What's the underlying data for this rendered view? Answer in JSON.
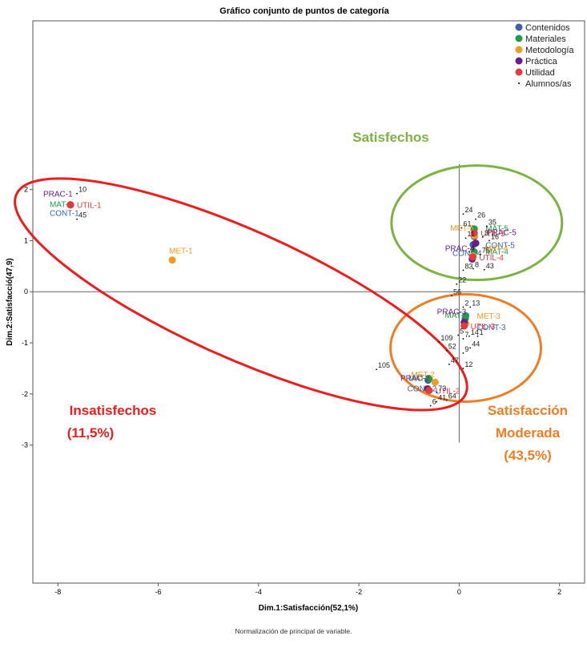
{
  "chart_data": {
    "type": "scatter",
    "title": "Gráfico conjunto de puntos de categoría",
    "xlabel": "Dim.1:Satisfacción(52,1%)",
    "ylabel": "Dim.2:Satisfacció(47,9)",
    "xlim": [
      -8.5,
      2.5
    ],
    "ylim": [
      -5.7,
      5.3
    ],
    "xticks": [
      -8,
      -6,
      -4,
      -2,
      0,
      2
    ],
    "yticks": [
      -3,
      -2,
      -1,
      0,
      1,
      2
    ],
    "axes_through_origin": true,
    "grid": false,
    "legend_position": "top-right",
    "series": [
      {
        "name": "Contenidos",
        "color": "#3b5fb5",
        "points": [
          {
            "label": "CONT-1",
            "x": -7.75,
            "y": 1.7
          },
          {
            "label": "CONT-2",
            "x": -0.62,
            "y": -1.73
          },
          {
            "label": "CONT-3",
            "x": 0.12,
            "y": -0.53
          },
          {
            "label": "CONT-4",
            "x": 0.28,
            "y": 0.92
          },
          {
            "label": "CONT-5",
            "x": 0.3,
            "y": 1.08
          }
        ]
      },
      {
        "name": "Materiales",
        "color": "#1e9e4a",
        "points": [
          {
            "label": "MAT-1",
            "x": -7.75,
            "y": 1.7
          },
          {
            "label": "MAT-2",
            "x": -0.6,
            "y": -1.7
          },
          {
            "label": "MAT-3",
            "x": 0.13,
            "y": -0.47
          },
          {
            "label": "MAT-4",
            "x": 0.3,
            "y": 0.78
          },
          {
            "label": "MAT-5",
            "x": 0.3,
            "y": 1.23
          }
        ]
      },
      {
        "name": "Metodología",
        "color": "#f39a21",
        "points": [
          {
            "label": "MET-1",
            "x": -5.72,
            "y": 0.62
          },
          {
            "label": "MET-2",
            "x": -0.48,
            "y": -1.77
          },
          {
            "label": "MET-3",
            "x": 0.13,
            "y": -0.62
          },
          {
            "label": "MET-4",
            "x": 0.28,
            "y": 0.7
          },
          {
            "label": "MET-5",
            "x": 0.3,
            "y": 1.1
          }
        ]
      },
      {
        "name": "Práctica",
        "color": "#6a1f87",
        "points": [
          {
            "label": "PRAC-1",
            "x": -7.75,
            "y": 1.7
          },
          {
            "label": "PRAC-2",
            "x": -0.63,
            "y": -1.9
          },
          {
            "label": "PRAC-3",
            "x": 0.1,
            "y": -0.6
          },
          {
            "label": "PRAC-4",
            "x": 0.26,
            "y": 0.64
          },
          {
            "label": "PRAC-5",
            "x": 0.33,
            "y": 0.95
          }
        ]
      },
      {
        "name": "Utilidad",
        "color": "#e63939",
        "points": [
          {
            "label": "UTIL-1",
            "x": -7.75,
            "y": 1.7
          },
          {
            "label": "UTIL-2",
            "x": -0.6,
            "y": -1.93
          },
          {
            "label": "UTIL-3",
            "x": 0.1,
            "y": -0.67
          },
          {
            "label": "UTIL-4",
            "x": 0.27,
            "y": 0.68
          },
          {
            "label": "UTIL-5",
            "x": 0.3,
            "y": 1.15
          }
        ]
      },
      {
        "name": "Alumnos/as",
        "color": "#000000",
        "points": [
          {
            "label": "10",
            "x": -7.62,
            "y": 1.92
          },
          {
            "label": "45",
            "x": -7.62,
            "y": 1.42
          },
          {
            "label": "105",
            "x": -1.65,
            "y": -1.52
          },
          {
            "label": "47",
            "x": -0.2,
            "y": -1.42
          },
          {
            "label": "6",
            "x": -0.57,
            "y": -2.23
          },
          {
            "label": "41",
            "x": -0.45,
            "y": -2.15
          },
          {
            "label": "64",
            "x": -0.25,
            "y": -2.12
          },
          {
            "label": "73",
            "x": -0.45,
            "y": -1.97
          },
          {
            "label": "109",
            "x": -0.4,
            "y": -0.98
          },
          {
            "label": "52",
            "x": -0.25,
            "y": -1.15
          },
          {
            "label": "5",
            "x": -0.02,
            "y": -0.85
          },
          {
            "label": "7",
            "x": 0.08,
            "y": -0.92
          },
          {
            "label": "9",
            "x": 0.08,
            "y": -1.2
          },
          {
            "label": "14",
            "x": 0.2,
            "y": -0.87
          },
          {
            "label": "1",
            "x": 0.37,
            "y": -0.87
          },
          {
            "label": "44",
            "x": 0.22,
            "y": -1.1
          },
          {
            "label": "2",
            "x": 0.08,
            "y": -0.3
          },
          {
            "label": "13",
            "x": 0.22,
            "y": -0.3
          },
          {
            "label": "12",
            "x": 0.08,
            "y": -1.5
          },
          {
            "label": "56",
            "x": -0.15,
            "y": -0.08
          },
          {
            "label": "22",
            "x": -0.05,
            "y": 0.15
          },
          {
            "label": "24",
            "x": 0.08,
            "y": 1.52
          },
          {
            "label": "26",
            "x": 0.33,
            "y": 1.42
          },
          {
            "label": "35",
            "x": 0.55,
            "y": 1.28
          },
          {
            "label": "61",
            "x": 0.05,
            "y": 1.25
          },
          {
            "label": "11",
            "x": 0.13,
            "y": 1.05
          },
          {
            "label": "3",
            "x": 0.47,
            "y": 1.07
          },
          {
            "label": "16",
            "x": 0.6,
            "y": 1.0
          },
          {
            "label": "4",
            "x": 0.2,
            "y": 0.78
          },
          {
            "label": "75",
            "x": 0.42,
            "y": 0.73
          },
          {
            "label": "83",
            "x": 0.08,
            "y": 0.42
          },
          {
            "label": "8",
            "x": 0.28,
            "y": 0.45
          },
          {
            "label": "43",
            "x": 0.5,
            "y": 0.43
          }
        ]
      }
    ],
    "annotations": [
      {
        "text": "Satisfechos",
        "color": "#7cb342"
      },
      {
        "text": "Insatisfechos",
        "color": "#ee1c1c"
      },
      {
        "text": "(11,5%)",
        "color": "#ee1c1c"
      },
      {
        "text": "Satisfacción",
        "color": "#ef7d22"
      },
      {
        "text": "Moderada",
        "color": "#ef7d22"
      },
      {
        "text": "(43,5%)",
        "color": "#ef7d22"
      }
    ],
    "ellipses": [
      {
        "color": "#7cb342",
        "cx": 0.35,
        "cy": 1.35,
        "rx": 1.7,
        "ry": 1.12,
        "rotate": 0
      },
      {
        "color": "#ef7d22",
        "cx": 0.13,
        "cy": -1.1,
        "rx": 1.5,
        "ry": 1.05,
        "rotate": 0
      },
      {
        "color": "#ee1c1c",
        "cx": -4.35,
        "cy": -0.05,
        "rx": 4.9,
        "ry": 1.25,
        "rotate": 24
      }
    ]
  },
  "footer": "Normalización de principal de variable."
}
